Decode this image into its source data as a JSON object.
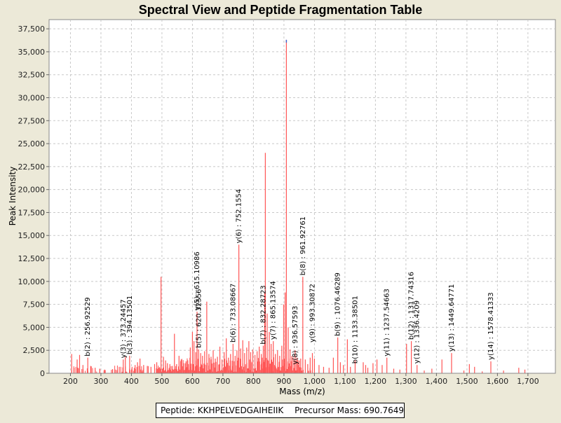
{
  "chart_data": {
    "type": "bar",
    "title": "Spectral View and Peptide Fragmentation Table",
    "xlabel": "Mass (m/z)",
    "ylabel": "Peak Intensity",
    "xlim": [
      130,
      1790
    ],
    "ylim": [
      0,
      38500
    ],
    "x_ticks": [
      200,
      300,
      400,
      500,
      600,
      700,
      800,
      900,
      1000,
      1100,
      1200,
      1300,
      1400,
      1500,
      1600,
      1700
    ],
    "x_tick_labels": [
      "200",
      "300",
      "400",
      "500",
      "600",
      "700",
      "800",
      "900",
      "1,000",
      "1,100",
      "1,200",
      "1,300",
      "1,400",
      "1,500",
      "1,600",
      "1,700"
    ],
    "y_ticks": [
      0,
      2500,
      5000,
      7500,
      10000,
      12500,
      15000,
      17500,
      20000,
      22500,
      25000,
      27500,
      30000,
      32500,
      35000,
      37500
    ],
    "y_tick_labels": [
      "0",
      "2,500",
      "5,000",
      "7,500",
      "10,000",
      "12,500",
      "15,000",
      "17,500",
      "20,000",
      "22,500",
      "25,000",
      "27,500",
      "30,000",
      "32,500",
      "35,000",
      "37,500"
    ],
    "grid": true,
    "peak_color": "#ff5555",
    "highlight_color": "#4466cc",
    "peaks": [
      {
        "x": 204,
        "y": 2100
      },
      {
        "x": 212,
        "y": 600
      },
      {
        "x": 222,
        "y": 1500
      },
      {
        "x": 230,
        "y": 2000
      },
      {
        "x": 241,
        "y": 900
      },
      {
        "x": 256.9,
        "y": 1700
      },
      {
        "x": 268,
        "y": 700
      },
      {
        "x": 281,
        "y": 600
      },
      {
        "x": 296,
        "y": 500
      },
      {
        "x": 312,
        "y": 400
      },
      {
        "x": 338,
        "y": 450
      },
      {
        "x": 352,
        "y": 350
      },
      {
        "x": 360,
        "y": 700
      },
      {
        "x": 373.2,
        "y": 1500
      },
      {
        "x": 380,
        "y": 1800
      },
      {
        "x": 394.1,
        "y": 1900
      },
      {
        "x": 402,
        "y": 700
      },
      {
        "x": 412,
        "y": 900
      },
      {
        "x": 420,
        "y": 1200
      },
      {
        "x": 428,
        "y": 1600
      },
      {
        "x": 440,
        "y": 900
      },
      {
        "x": 452,
        "y": 800
      },
      {
        "x": 464,
        "y": 700
      },
      {
        "x": 476,
        "y": 1000
      },
      {
        "x": 483,
        "y": 1200
      },
      {
        "x": 490,
        "y": 600
      },
      {
        "x": 497,
        "y": 10500
      },
      {
        "x": 505,
        "y": 1800
      },
      {
        "x": 512,
        "y": 1400
      },
      {
        "x": 518,
        "y": 1100
      },
      {
        "x": 526,
        "y": 1000
      },
      {
        "x": 534,
        "y": 800
      },
      {
        "x": 541,
        "y": 4300
      },
      {
        "x": 548,
        "y": 1000
      },
      {
        "x": 556,
        "y": 1900
      },
      {
        "x": 563,
        "y": 1500
      },
      {
        "x": 571,
        "y": 1100
      },
      {
        "x": 579,
        "y": 1300
      },
      {
        "x": 587,
        "y": 1000
      },
      {
        "x": 593,
        "y": 2800
      },
      {
        "x": 600,
        "y": 4500
      },
      {
        "x": 605,
        "y": 3500
      },
      {
        "x": 611,
        "y": 2300
      },
      {
        "x": 615.1,
        "y": 6700
      },
      {
        "x": 620.3,
        "y": 2600
      },
      {
        "x": 627,
        "y": 2200
      },
      {
        "x": 633,
        "y": 1900
      },
      {
        "x": 640,
        "y": 2400
      },
      {
        "x": 647,
        "y": 7800
      },
      {
        "x": 654,
        "y": 2100
      },
      {
        "x": 661,
        "y": 1800
      },
      {
        "x": 668,
        "y": 2500
      },
      {
        "x": 675,
        "y": 1600
      },
      {
        "x": 682,
        "y": 1800
      },
      {
        "x": 690,
        "y": 2900
      },
      {
        "x": 697,
        "y": 1500
      },
      {
        "x": 704,
        "y": 2300
      },
      {
        "x": 711,
        "y": 3800
      },
      {
        "x": 718,
        "y": 1700
      },
      {
        "x": 725,
        "y": 2100
      },
      {
        "x": 733.1,
        "y": 3200
      },
      {
        "x": 740,
        "y": 1900
      },
      {
        "x": 746,
        "y": 2500
      },
      {
        "x": 752.2,
        "y": 14000
      },
      {
        "x": 758,
        "y": 2700
      },
      {
        "x": 765,
        "y": 3600
      },
      {
        "x": 771,
        "y": 2200
      },
      {
        "x": 778,
        "y": 2800
      },
      {
        "x": 785,
        "y": 3500
      },
      {
        "x": 791,
        "y": 2300
      },
      {
        "x": 798,
        "y": 2600
      },
      {
        "x": 805,
        "y": 2000
      },
      {
        "x": 812,
        "y": 2400
      },
      {
        "x": 819,
        "y": 2900
      },
      {
        "x": 826,
        "y": 2100
      },
      {
        "x": 832.3,
        "y": 3000
      },
      {
        "x": 837,
        "y": 8800
      },
      {
        "x": 839,
        "y": 24000
      },
      {
        "x": 845,
        "y": 6500
      },
      {
        "x": 852,
        "y": 4500
      },
      {
        "x": 858,
        "y": 3200
      },
      {
        "x": 865.1,
        "y": 3500
      },
      {
        "x": 872,
        "y": 2100
      },
      {
        "x": 879,
        "y": 2500
      },
      {
        "x": 886,
        "y": 1900
      },
      {
        "x": 893,
        "y": 3000
      },
      {
        "x": 899,
        "y": 7500
      },
      {
        "x": 904,
        "y": 8800
      },
      {
        "x": 908,
        "y": 36300,
        "highlight": true
      },
      {
        "x": 914,
        "y": 5000
      },
      {
        "x": 920,
        "y": 2600
      },
      {
        "x": 926,
        "y": 1900
      },
      {
        "x": 936.6,
        "y": 2500
      },
      {
        "x": 943,
        "y": 1700
      },
      {
        "x": 950,
        "y": 1400
      },
      {
        "x": 955,
        "y": 1600
      },
      {
        "x": 961.9,
        "y": 10500
      },
      {
        "x": 970,
        "y": 1500
      },
      {
        "x": 978,
        "y": 1000
      },
      {
        "x": 986,
        "y": 1700
      },
      {
        "x": 993.3,
        "y": 2200
      },
      {
        "x": 1000,
        "y": 1600
      },
      {
        "x": 1015,
        "y": 900
      },
      {
        "x": 1030,
        "y": 700
      },
      {
        "x": 1048,
        "y": 600
      },
      {
        "x": 1062,
        "y": 1700
      },
      {
        "x": 1076.5,
        "y": 3900
      },
      {
        "x": 1085,
        "y": 1200
      },
      {
        "x": 1095,
        "y": 900
      },
      {
        "x": 1108,
        "y": 3700
      },
      {
        "x": 1118,
        "y": 700
      },
      {
        "x": 1133.4,
        "y": 1400
      },
      {
        "x": 1160,
        "y": 1200
      },
      {
        "x": 1168,
        "y": 900
      },
      {
        "x": 1175,
        "y": 600
      },
      {
        "x": 1192,
        "y": 1100
      },
      {
        "x": 1205,
        "y": 1500
      },
      {
        "x": 1222,
        "y": 900
      },
      {
        "x": 1237.5,
        "y": 1700
      },
      {
        "x": 1260,
        "y": 500
      },
      {
        "x": 1280,
        "y": 400
      },
      {
        "x": 1302,
        "y": 3200
      },
      {
        "x": 1317.7,
        "y": 3500
      },
      {
        "x": 1336.4,
        "y": 900
      },
      {
        "x": 1360,
        "y": 300
      },
      {
        "x": 1385,
        "y": 500
      },
      {
        "x": 1418,
        "y": 1500
      },
      {
        "x": 1449.6,
        "y": 2200
      },
      {
        "x": 1490,
        "y": 300
      },
      {
        "x": 1508,
        "y": 1000
      },
      {
        "x": 1525,
        "y": 700
      },
      {
        "x": 1550,
        "y": 200
      },
      {
        "x": 1578.4,
        "y": 1300
      },
      {
        "x": 1620,
        "y": 300
      },
      {
        "x": 1670,
        "y": 600
      },
      {
        "x": 1690,
        "y": 400
      }
    ],
    "annotations": [
      {
        "x": 256.92529,
        "y": 1700,
        "text": "b(2) : 256.92529"
      },
      {
        "x": 373.24457,
        "y": 1500,
        "text": "y(3) : 373.24457"
      },
      {
        "x": 394.13501,
        "y": 1900,
        "text": "b(3) : 394.13501"
      },
      {
        "x": 615.10986,
        "y": 6700,
        "text": "y(5) : 615.10986"
      },
      {
        "x": 620.32556,
        "y": 2600,
        "text": "b(5) : 620.32556"
      },
      {
        "x": 733.08667,
        "y": 3200,
        "text": "b(6) : 733.08667"
      },
      {
        "x": 752.1554,
        "y": 14000,
        "text": "y(6) : 752.1554"
      },
      {
        "x": 832.28723,
        "y": 3000,
        "text": "b(7) : 832.28723"
      },
      {
        "x": 865.13574,
        "y": 3500,
        "text": "y(7) : 865.13574"
      },
      {
        "x": 936.57593,
        "y": 800,
        "text": "y(8) : 936.57593"
      },
      {
        "x": 961.92761,
        "y": 10500,
        "text": "b(8) : 961.92761"
      },
      {
        "x": 993.30872,
        "y": 3200,
        "text": "y(9) : 993.30872"
      },
      {
        "x": 1076.46289,
        "y": 3900,
        "text": "b(9) : 1076.46289"
      },
      {
        "x": 1133.38501,
        "y": 900,
        "text": "b(10) : 1133.38501"
      },
      {
        "x": 1237.54663,
        "y": 1700,
        "text": "y(11) : 1237.54663"
      },
      {
        "x": 1317.74316,
        "y": 3500,
        "text": "b(12) : 1317.74316"
      },
      {
        "x": 1336.4209,
        "y": 900,
        "text": "y(12) : 1336.4209"
      },
      {
        "x": 1449.64771,
        "y": 2200,
        "text": "y(13) : 1449.64771"
      },
      {
        "x": 1578.41333,
        "y": 1300,
        "text": "y(14) : 1578.41333"
      }
    ]
  },
  "footer": {
    "peptide": "Peptide: KKHPELVEDGAIHEIIK",
    "precursor": "Precursor Mass: 690.7649"
  }
}
